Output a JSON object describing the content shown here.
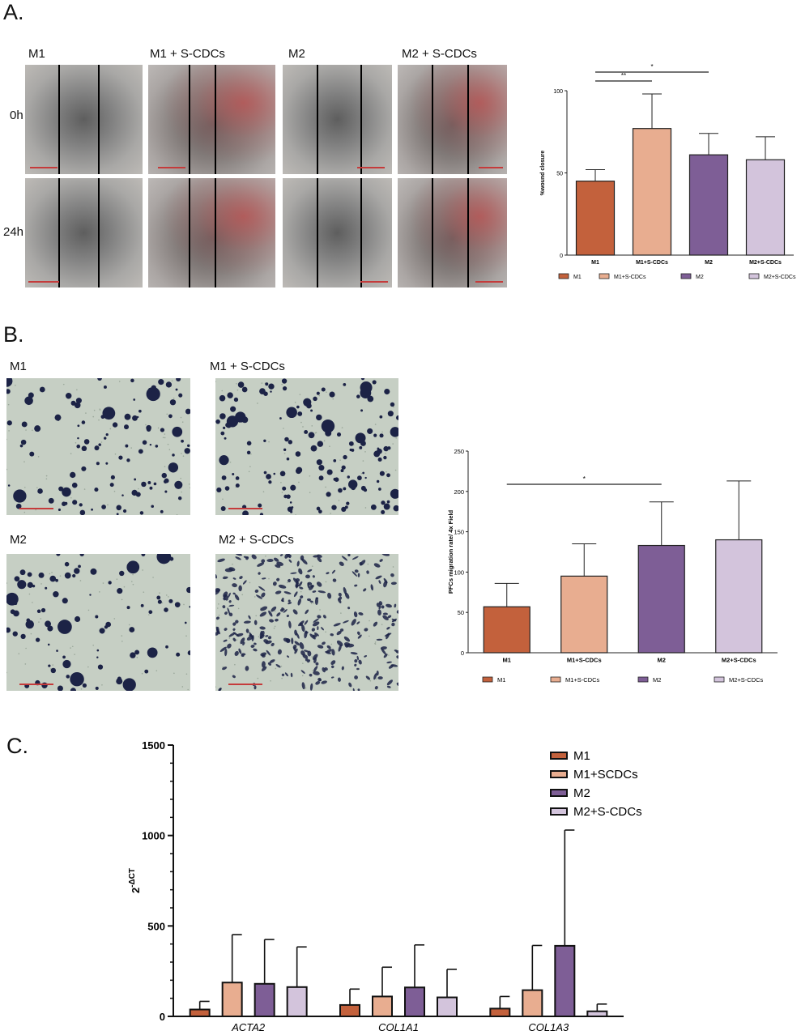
{
  "panels": {
    "a": {
      "letter": "A.",
      "conditions": [
        "M1",
        "M1 + S-CDCs",
        "M2",
        "M2 + S-CDCs"
      ],
      "timepoints": [
        "0h",
        "24h"
      ]
    },
    "b": {
      "letter": "B.",
      "conditions": [
        "M1",
        "M1 + S-CDCs",
        "M2",
        "M2 + S-CDCs"
      ]
    },
    "c": {
      "letter": "C."
    }
  },
  "colors": {
    "M1": "#c3613c",
    "M1+S-CDCs": "#e8ad90",
    "M2": "#7e5e96",
    "M2+S-CDCs": "#d3c4dc",
    "transwell_dot": "#1c2346",
    "scale_bar": "#c53b3b"
  },
  "chart_data": [
    {
      "type": "bar",
      "panel": "A",
      "categories": [
        "M1",
        "M1+S-CDCs",
        "M2",
        "M2+S-CDCs"
      ],
      "values": [
        45,
        77,
        61,
        58
      ],
      "errors": [
        7,
        21,
        13,
        14
      ],
      "ylabel": "%wound closure",
      "ylim": [
        0,
        100
      ],
      "yticks": [
        "0",
        "50",
        "100"
      ],
      "legend": [
        "M1",
        "M1+S-CDCs",
        "M2",
        "M2+S-CDCs"
      ],
      "legend_position": "bottom",
      "significance": [
        {
          "from": "M1",
          "to": "M1+S-CDCs",
          "label": "**"
        },
        {
          "from": "M1",
          "to": "M2",
          "label": "*"
        }
      ]
    },
    {
      "type": "bar",
      "panel": "B",
      "categories": [
        "M1",
        "M1+S-CDCs",
        "M2",
        "M2+S-CDCs"
      ],
      "values": [
        57,
        95,
        133,
        140
      ],
      "errors": [
        29,
        40,
        54,
        73
      ],
      "ylabel": "PFCs migration rate/ 4x Field",
      "ylim": [
        0,
        250
      ],
      "yticks": [
        "0",
        "50",
        "100",
        "150",
        "200",
        "250"
      ],
      "legend": [
        "M1",
        "M1+S-CDCs",
        "M2",
        "M2+S-CDCs"
      ],
      "legend_position": "bottom",
      "significance": [
        {
          "from": "M1",
          "to": "M2",
          "label": "*"
        }
      ]
    },
    {
      "type": "bar",
      "panel": "C",
      "categories": [
        "ACTA2",
        "COL1A1",
        "COL1A3"
      ],
      "series": [
        {
          "name": "M1",
          "values": [
            38,
            63,
            43
          ],
          "errors": [
            45,
            88,
            67
          ]
        },
        {
          "name": "M1+SCDCs",
          "values": [
            187,
            110,
            145
          ],
          "errors": [
            265,
            162,
            247
          ]
        },
        {
          "name": "M2",
          "values": [
            180,
            160,
            390
          ],
          "errors": [
            245,
            235,
            640
          ]
        },
        {
          "name": "M2+S-CDCs",
          "values": [
            162,
            105,
            28
          ],
          "errors": [
            222,
            155,
            40
          ]
        }
      ],
      "ylabel": "2-ΔCT",
      "ylabel_base": "2",
      "ylabel_sup": "-ΔCT",
      "ylim": [
        0,
        1500
      ],
      "yticks": [
        "0",
        "500",
        "1000",
        "1500"
      ],
      "legend": [
        "M1",
        "M1+SCDCs",
        "M2",
        "M2+S-CDCs"
      ],
      "legend_position": "top-right"
    }
  ]
}
